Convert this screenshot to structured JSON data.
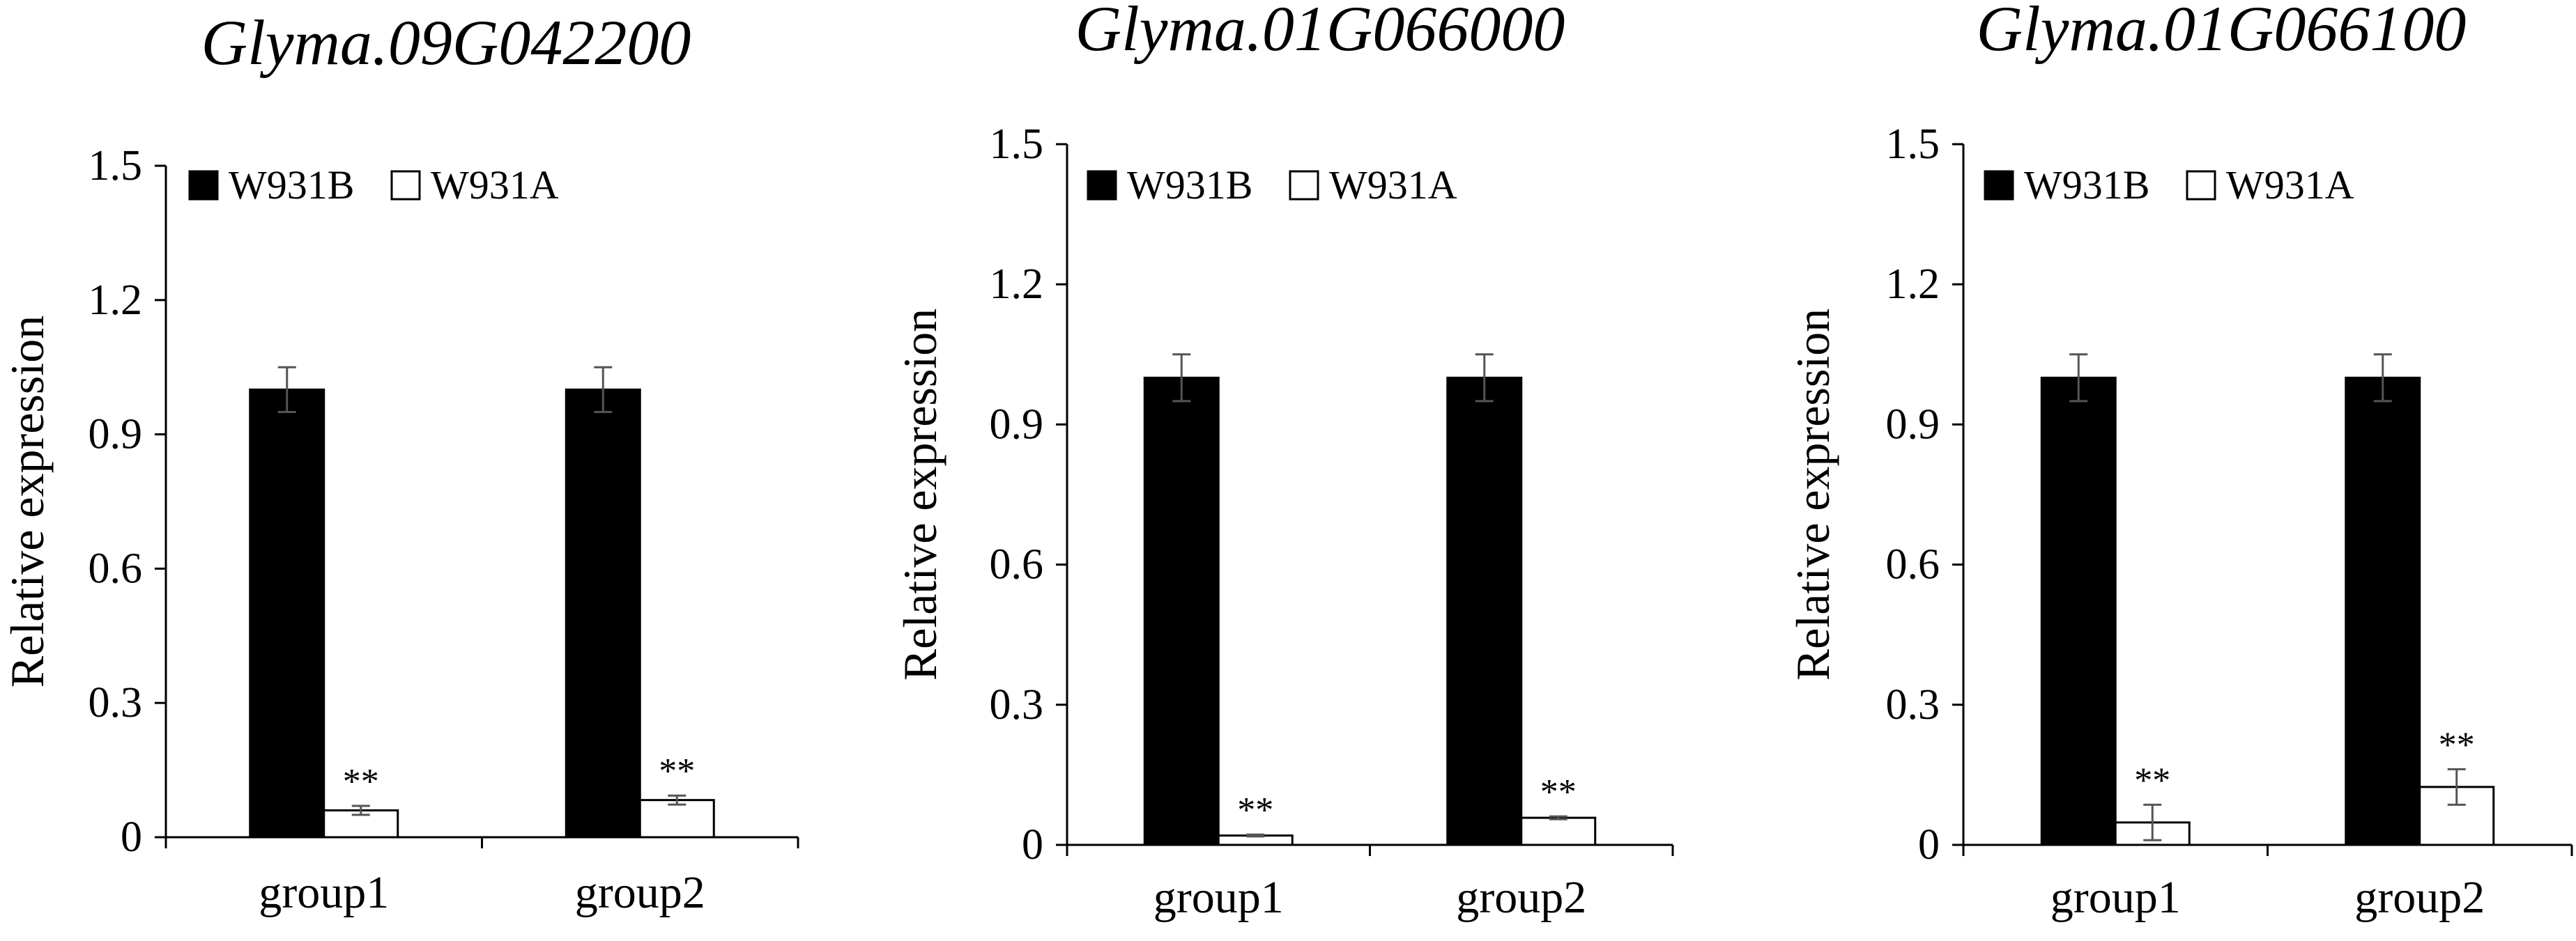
{
  "chart_data": [
    {
      "type": "bar",
      "title": "Glyma.09G042200",
      "ylabel": "Relative expression",
      "xlabel": "",
      "ylim": [
        0,
        1.5
      ],
      "yticks": [
        "0",
        "0.3",
        "0.6",
        "0.9",
        "1.2",
        "1.5"
      ],
      "categories": [
        "group1",
        "group2"
      ],
      "series": [
        {
          "name": "W931B",
          "color": "#000000",
          "values": [
            1.0,
            1.0
          ],
          "errors": [
            0.05,
            0.05
          ],
          "marks": [
            "",
            ""
          ]
        },
        {
          "name": "W931A",
          "color": "#ffffff",
          "values": [
            0.06,
            0.083
          ],
          "errors": [
            0.01,
            0.01
          ],
          "marks": [
            "**",
            "**"
          ]
        }
      ],
      "legend_position": "top-left"
    },
    {
      "type": "bar",
      "title": "Glyma.01G066000",
      "ylabel": "Relative expression",
      "xlabel": "",
      "ylim": [
        0,
        1.5
      ],
      "yticks": [
        "0",
        "0.3",
        "0.6",
        "0.9",
        "1.2",
        "1.5"
      ],
      "categories": [
        "group1",
        "group2"
      ],
      "series": [
        {
          "name": "W931B",
          "color": "#000000",
          "values": [
            1.0,
            1.0
          ],
          "errors": [
            0.05,
            0.05
          ],
          "marks": [
            "",
            ""
          ]
        },
        {
          "name": "W931A",
          "color": "#ffffff",
          "values": [
            0.02,
            0.058
          ],
          "errors": [
            0.002,
            0.003
          ],
          "marks": [
            "**",
            "**"
          ]
        }
      ],
      "legend_position": "top-left"
    },
    {
      "type": "bar",
      "title": "Glyma.01G066100",
      "ylabel": "Relative expression",
      "xlabel": "",
      "ylim": [
        0,
        1.5
      ],
      "yticks": [
        "0",
        "0.3",
        "0.6",
        "0.9",
        "1.2",
        "1.5"
      ],
      "categories": [
        "group1",
        "group2"
      ],
      "series": [
        {
          "name": "W931B",
          "color": "#000000",
          "values": [
            1.0,
            1.0
          ],
          "errors": [
            0.05,
            0.05
          ],
          "marks": [
            "",
            ""
          ]
        },
        {
          "name": "W931A",
          "color": "#ffffff",
          "values": [
            0.048,
            0.124
          ],
          "errors": [
            0.038,
            0.038
          ],
          "marks": [
            "**",
            "**"
          ]
        }
      ],
      "legend_position": "top-left"
    }
  ]
}
